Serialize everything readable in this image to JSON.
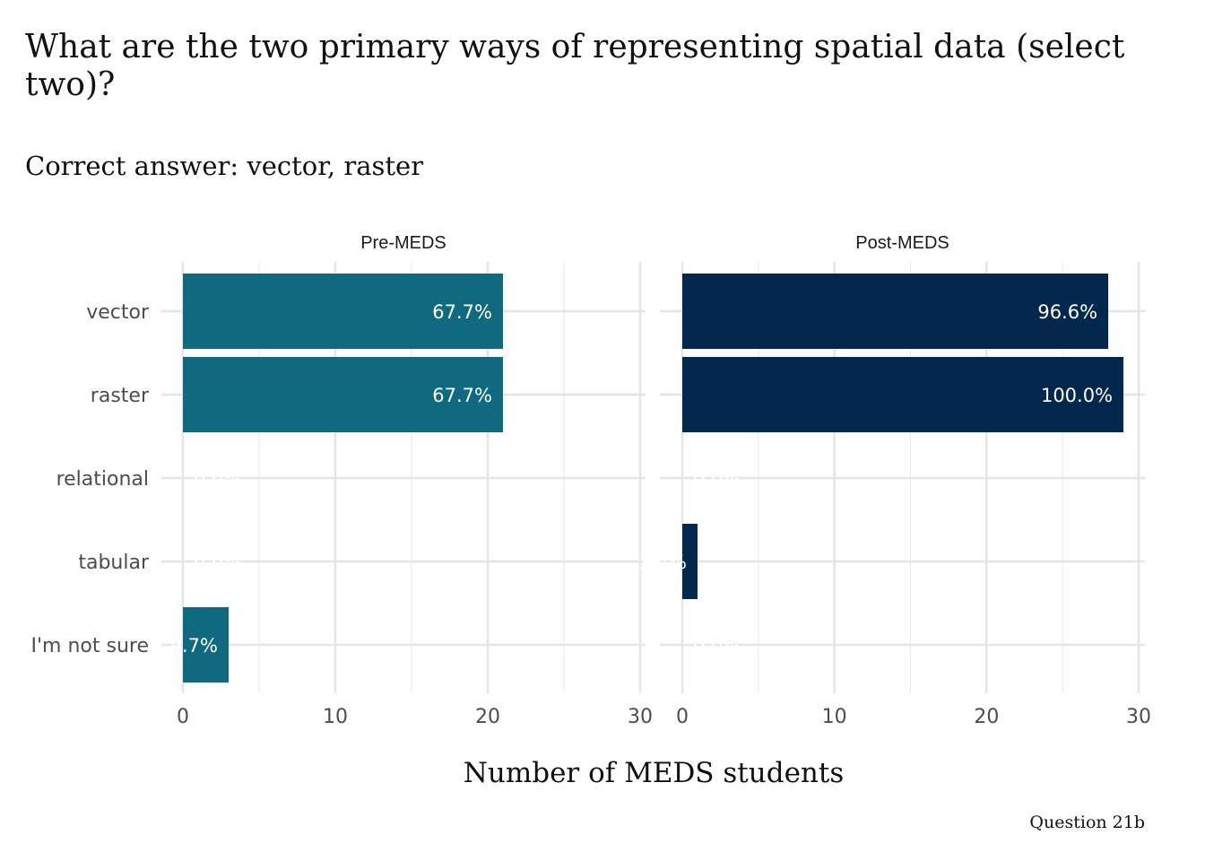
{
  "chart_data": {
    "type": "bar",
    "orientation": "horizontal",
    "title": "What are the two primary ways of representing spatial data (select two)?",
    "subtitle": "Correct answer: vector, raster",
    "xlabel": "Number of MEDS students",
    "ylabel": "",
    "caption": "Question 21b",
    "categories": [
      "vector",
      "raster",
      "relational",
      "tabular",
      "I'm not sure"
    ],
    "xlim": [
      0,
      30
    ],
    "xticks": [
      "0",
      "10",
      "20",
      "30"
    ],
    "grid": true,
    "facets": [
      {
        "name": "Pre-MEDS",
        "color": "#0f6a7f",
        "values": [
          21,
          21,
          0,
          0,
          3
        ],
        "labels": [
          "67.7%",
          "67.7%",
          "0.0%",
          "0.0%",
          "9.7%"
        ]
      },
      {
        "name": "Post-MEDS",
        "color": "#04284d",
        "values": [
          28,
          29,
          0,
          1,
          0
        ],
        "labels": [
          "96.6%",
          "100.0%",
          "0.0%",
          "3.4%",
          "0.0%"
        ]
      }
    ]
  }
}
